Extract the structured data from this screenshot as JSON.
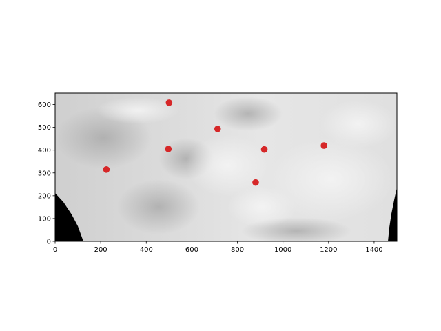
{
  "chart_data": {
    "type": "scatter",
    "title": "",
    "xlabel": "",
    "ylabel": "",
    "xlim": [
      0,
      1500
    ],
    "ylim": [
      0,
      650
    ],
    "x_ticks": [
      0,
      200,
      400,
      600,
      800,
      1000,
      1200,
      1400
    ],
    "y_ticks": [
      0,
      100,
      200,
      300,
      400,
      500,
      600
    ],
    "x_tick_labels": [
      "0",
      "200",
      "400",
      "600",
      "800",
      "1000",
      "1200",
      "1400"
    ],
    "y_tick_labels": [
      "0",
      "100",
      "200",
      "300",
      "400",
      "500",
      "600"
    ],
    "grid": false,
    "background": "grayscale satellite image",
    "marker_color": "#d62728",
    "points": [
      {
        "x": 225,
        "y": 315
      },
      {
        "x": 500,
        "y": 608
      },
      {
        "x": 497,
        "y": 405
      },
      {
        "x": 713,
        "y": 493
      },
      {
        "x": 918,
        "y": 403
      },
      {
        "x": 880,
        "y": 258
      },
      {
        "x": 1180,
        "y": 420
      }
    ]
  }
}
